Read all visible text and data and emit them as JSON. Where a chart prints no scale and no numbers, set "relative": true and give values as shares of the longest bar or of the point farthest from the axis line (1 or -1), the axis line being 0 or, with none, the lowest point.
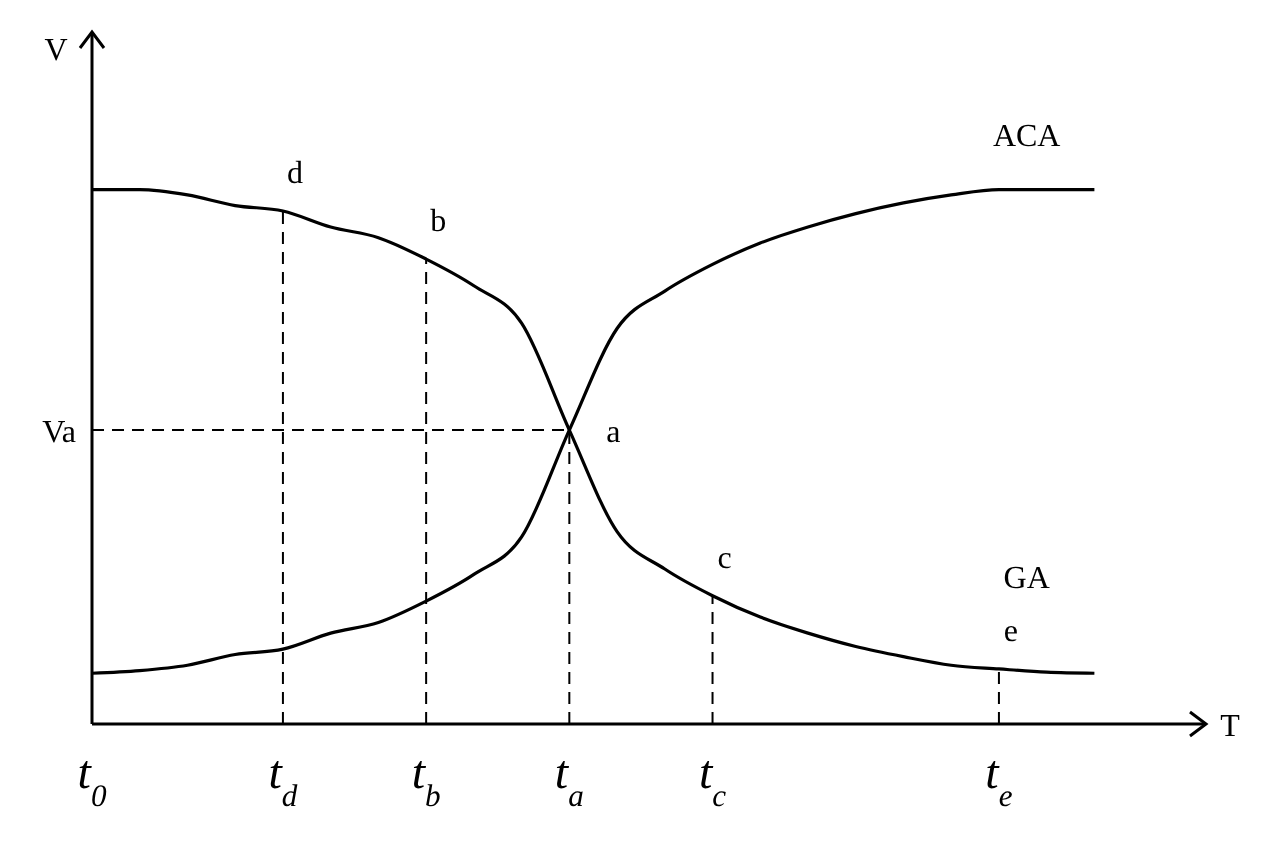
{
  "chart_data": {
    "type": "line",
    "relative": true,
    "xlabel": "T",
    "ylabel": "V",
    "legend": false,
    "grid": false,
    "marker": "none",
    "line_style": "solid",
    "categories": [
      "t$_{0}$",
      null,
      null,
      null,
      "t$_{d}$",
      null,
      null,
      "t$_{b}$",
      null,
      null,
      "t$_{a}$",
      null,
      null,
      "t$_{c}$",
      null,
      null,
      null,
      null,
      null,
      "t$_{e}$",
      null,
      null
    ],
    "series": [
      {
        "name": "ACA",
        "color": "#000000",
        "values": [
          0.095,
          0.1,
          0.11,
          0.13,
          0.14,
          0.17,
          0.19,
          0.23,
          0.28,
          0.35,
          0.55,
          0.74,
          0.81,
          0.86,
          0.9,
          0.93,
          0.955,
          0.975,
          0.99,
          1.0,
          1.0,
          1.0
        ]
      },
      {
        "name": "GA",
        "color": "#000000",
        "values": [
          1.0,
          1.0,
          0.99,
          0.97,
          0.96,
          0.93,
          0.91,
          0.87,
          0.82,
          0.75,
          0.55,
          0.36,
          0.29,
          0.24,
          0.2,
          0.17,
          0.145,
          0.126,
          0.11,
          0.103,
          0.097,
          0.095
        ]
      }
    ],
    "annotations": [
      {
        "text": "d",
        "x": "t$_{d}$",
        "y": 0.96
      },
      {
        "text": "b",
        "x": "t$_{b}$",
        "y": 0.87
      },
      {
        "text": "a",
        "x": "t$_{a}$",
        "y": 0.55
      },
      {
        "text": "c",
        "x": "t$_{c}$",
        "y": 0.24
      },
      {
        "text": "e",
        "x": "t$_{e}$",
        "y": 0.103
      }
    ],
    "ref_lines": [
      {
        "axis": "y",
        "value": 0.55,
        "label": "Va",
        "line_style": "dashed"
      },
      {
        "axis": "x",
        "value": "t$_{d}$",
        "line_style": "dashed"
      },
      {
        "axis": "x",
        "value": "t$_{b}$",
        "line_style": "dashed"
      },
      {
        "axis": "x",
        "value": "t$_{a}$",
        "line_style": "dashed"
      },
      {
        "axis": "x",
        "value": "t$_{c}$",
        "line_style": "dashed"
      },
      {
        "axis": "x",
        "value": "t$_{e}$",
        "line_style": "dashed"
      }
    ]
  }
}
